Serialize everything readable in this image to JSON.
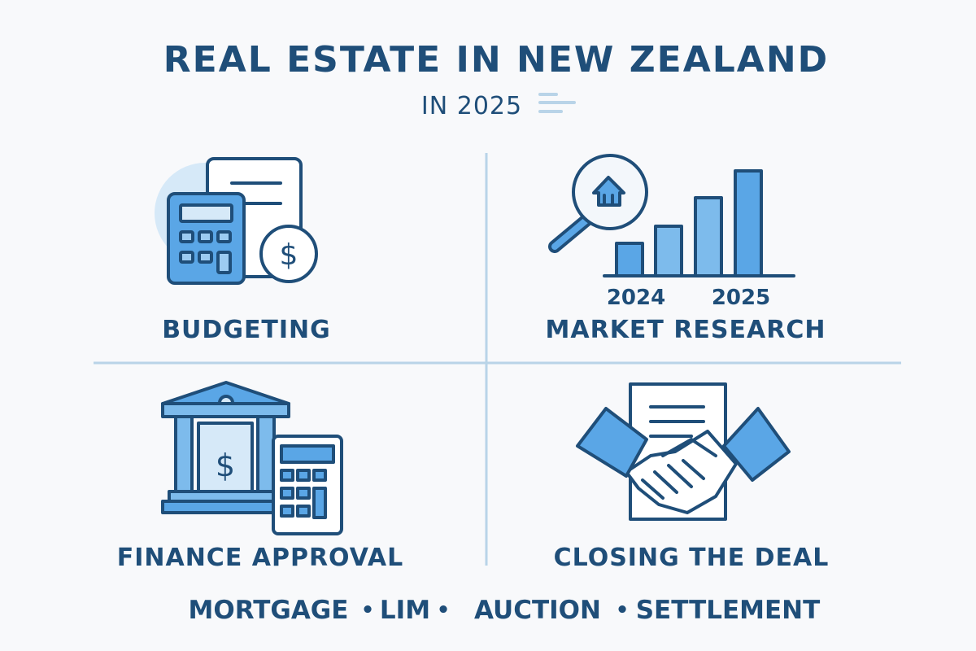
{
  "header": {
    "title": "REAL ESTATE IN NEW ZEALAND",
    "subtitle": "IN 2025"
  },
  "sections": [
    {
      "label": "BUDGETING",
      "icon": "calculator-document-dollar-icon"
    },
    {
      "label": "MARKET RESEARCH",
      "icon": "magnifier-house-bar-chart-icon",
      "chart_labels": [
        "2024",
        "2025"
      ]
    },
    {
      "label": "FINANCE APPROVAL",
      "icon": "bank-calculator-icon"
    },
    {
      "label": "CLOSING THE DEAL",
      "icon": "handshake-document-icon"
    }
  ],
  "footer": {
    "terms": [
      "MORTGAGE",
      "LIM",
      "AUCTION",
      "SETTLEMENT"
    ],
    "separator": "•"
  },
  "colors": {
    "text": "#1f4e79",
    "accent": "#5aa6e6",
    "light": "#d6e9f8",
    "divider": "#b9d4e8"
  }
}
